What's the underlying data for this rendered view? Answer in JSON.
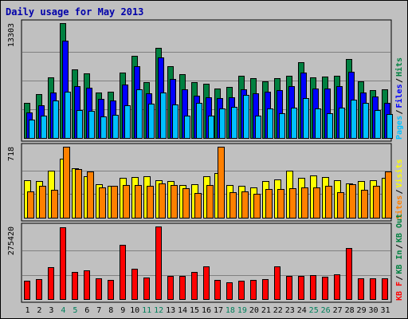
{
  "chart_data": {
    "type": "bar",
    "title": "Daily usage for May 2013",
    "days": [
      "1",
      "2",
      "3",
      "4",
      "5",
      "6",
      "7",
      "8",
      "9",
      "10",
      "11",
      "12",
      "13",
      "14",
      "15",
      "16",
      "17",
      "18",
      "19",
      "20",
      "21",
      "22",
      "23",
      "24",
      "25",
      "26",
      "27",
      "28",
      "29",
      "30",
      "31"
    ],
    "weekend_days": [
      "4",
      "5",
      "11",
      "12",
      "18",
      "19",
      "25",
      "26"
    ],
    "colors": {
      "hits": "#008040",
      "files": "#0000ff",
      "pages": "#00c0ff",
      "visits": "#ffff00",
      "sites": "#ff8000",
      "kbytes": "#ff0000",
      "weekday_label": "#000000",
      "weekend_label": "#00805c"
    },
    "panels": [
      {
        "id": "hits-files-pages",
        "ymax_label": "13303",
        "ymax": 13303,
        "side_labels": [
          {
            "text": "Pages",
            "color": "#00c0ff"
          },
          {
            "text": "Files",
            "color": "#0000ff"
          },
          {
            "text": "Hits",
            "color": "#008040"
          }
        ],
        "series": [
          {
            "name": "Hits",
            "color": "#008040",
            "values": [
              4100,
              5100,
              7000,
              13303,
              7900,
              7500,
              5300,
              5400,
              7600,
              9500,
              6500,
              10400,
              8300,
              7400,
              6500,
              6300,
              5700,
              5900,
              7200,
              6900,
              6600,
              6900,
              7200,
              8800,
              7000,
              7100,
              7200,
              9100,
              6600,
              5500,
              5600
            ]
          },
          {
            "name": "Files",
            "color": "#0000ff",
            "values": [
              3000,
              3800,
              5300,
              11300,
              6000,
              5800,
              4500,
              4300,
              6200,
              8300,
              5200,
              9300,
              6800,
              5600,
              4900,
              4700,
              4600,
              4700,
              5600,
              5200,
              5400,
              5500,
              6000,
              7600,
              5700,
              5700,
              6000,
              7700,
              5300,
              4800,
              4100
            ]
          },
          {
            "name": "Pages",
            "color": "#00c0ff",
            "values": [
              2100,
              2600,
              4300,
              5400,
              3200,
              3100,
              2500,
              2700,
              3800,
              5600,
              4000,
              5300,
              3900,
              2600,
              4100,
              2600,
              3400,
              3600,
              5000,
              2600,
              3400,
              2900,
              3500,
              4600,
              3400,
              2900,
              3500,
              4400,
              4100,
              3200,
              2800
            ]
          }
        ]
      },
      {
        "id": "visits-sites",
        "ymax_label": "718",
        "ymax": 718,
        "side_labels": [
          {
            "text": "Sites",
            "color": "#ff8000"
          },
          {
            "text": "Visits",
            "color": "#ffff00"
          }
        ],
        "series": [
          {
            "name": "Visits",
            "color": "#ffff00",
            "values": [
              380,
              370,
              480,
              600,
              500,
              420,
              340,
              320,
              400,
              410,
              420,
              380,
              370,
              330,
              340,
              420,
              450,
              330,
              320,
              310,
              370,
              390,
              480,
              400,
              430,
              410,
              380,
              350,
              370,
              380,
              400
            ]
          },
          {
            "name": "Sites",
            "color": "#ff8000",
            "values": [
              270,
              320,
              280,
              718,
              490,
              470,
              310,
              320,
              330,
              330,
              320,
              350,
              330,
              300,
              250,
              330,
              718,
              260,
              270,
              240,
              290,
              290,
              300,
              310,
              310,
              320,
              260,
              340,
              280,
              320,
              470
            ]
          }
        ]
      },
      {
        "id": "kbytes",
        "ymax_label": "275420",
        "ymax": 275420,
        "side_labels": [
          {
            "text": "KB F",
            "color": "#ff0000"
          },
          {
            "text": "KB In",
            "color": "#008040"
          },
          {
            "text": "KB Out",
            "color": "#008040"
          }
        ],
        "series": [
          {
            "name": "KBytes",
            "color": "#ff0000",
            "values": [
              70000,
              76000,
              120000,
              273000,
              104000,
              109000,
              80000,
              72000,
              206000,
              116000,
              83000,
              275420,
              89000,
              89000,
              103000,
              125000,
              74000,
              64000,
              70000,
              73000,
              76000,
              123000,
              89000,
              89000,
              91000,
              86000,
              94000,
              195000,
              80000,
              80000,
              80000
            ]
          }
        ]
      }
    ]
  }
}
